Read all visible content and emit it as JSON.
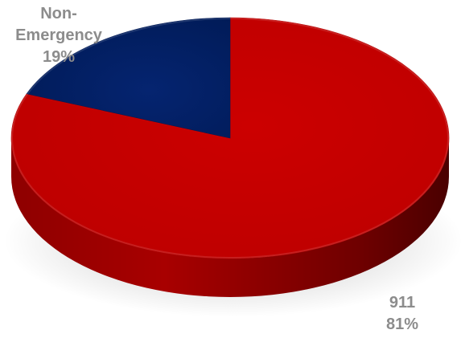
{
  "chart_data": {
    "type": "pie",
    "title": "",
    "slices": [
      {
        "label": "911",
        "value": 81,
        "percent_label": "81%",
        "color": "#c00000"
      },
      {
        "label": "Non-Emergency",
        "label_lines": [
          "Non-",
          "Emergency"
        ],
        "value": 19,
        "percent_label": "19%",
        "color": "#002060"
      }
    ],
    "style": "3d",
    "legend": "none"
  }
}
